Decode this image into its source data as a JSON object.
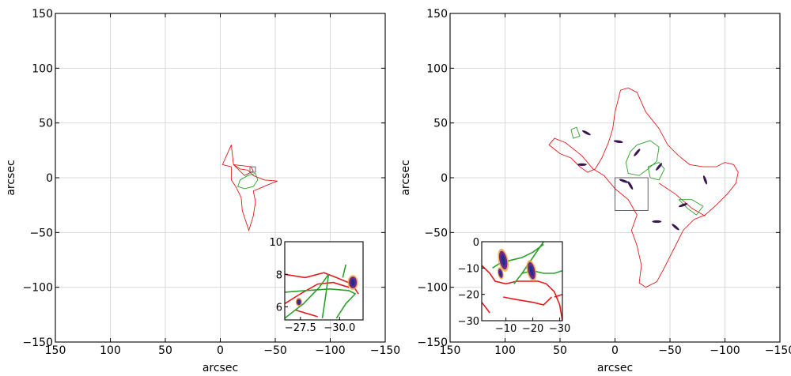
{
  "chart_data": [
    {
      "type": "line",
      "xlabel": "arcsec",
      "ylabel": "arcsec",
      "xlim": [
        150,
        -150
      ],
      "ylim": [
        -150,
        150
      ],
      "x_ticks": [
        "150",
        "100",
        "50",
        "0",
        "−50",
        "−100",
        "−150"
      ],
      "y_ticks": [
        "150",
        "100",
        "50",
        "0",
        "−50",
        "−100",
        "−150"
      ],
      "x_tick_values": [
        150,
        100,
        50,
        0,
        -50,
        -100,
        -150
      ],
      "y_tick_values": [
        150,
        100,
        50,
        0,
        -50,
        -100,
        -150
      ],
      "grid": true,
      "colors": {
        "red": "#e41a1c",
        "green": "#2ca02c"
      },
      "series": [
        {
          "color": "red",
          "points": [
            [
              -10,
              30
            ],
            [
              -12,
              12
            ],
            [
              -18,
              8
            ],
            [
              -25,
              7
            ],
            [
              -30,
              2
            ],
            [
              -40,
              -2
            ],
            [
              -52,
              -3
            ],
            [
              -42,
              -7
            ],
            [
              -35,
              -10
            ],
            [
              -30,
              -12
            ],
            [
              -32,
              -22
            ],
            [
              -30,
              -35
            ],
            [
              -26,
              -48
            ],
            [
              -20,
              -30
            ],
            [
              -19,
              -18
            ],
            [
              -14,
              -8
            ],
            [
              -10,
              -2
            ],
            [
              -10,
              10
            ],
            [
              -2,
              12
            ],
            [
              -10,
              30
            ]
          ]
        },
        {
          "color": "red",
          "points": [
            [
              -12,
              12
            ],
            [
              -28,
              10
            ],
            [
              -30,
              6
            ],
            [
              -22,
              2
            ],
            [
              -12,
              12
            ]
          ]
        },
        {
          "color": "green",
          "points": [
            [
              -18,
              -2
            ],
            [
              -25,
              2
            ],
            [
              -32,
              4
            ],
            [
              -34,
              -2
            ],
            [
              -30,
              -8
            ],
            [
              -22,
              -10
            ],
            [
              -16,
              -8
            ],
            [
              -18,
              -2
            ]
          ]
        }
      ],
      "box": {
        "x": [
          -27,
          -32
        ],
        "y": [
          5,
          10
        ]
      },
      "inset": {
        "xlim": [
          -26.5,
          -31.5
        ],
        "ylim": [
          5.2,
          10
        ],
        "x_ticks": [
          "−27.5",
          "−30.0"
        ],
        "x_tick_values": [
          -27.5,
          -30.0
        ],
        "y_ticks": [
          "6",
          "8",
          "10"
        ],
        "y_tick_values": [
          6,
          8,
          10
        ],
        "series": [
          {
            "color": "red",
            "points": [
              [
                -26.5,
                8.0
              ],
              [
                -27.8,
                7.8
              ],
              [
                -29.0,
                8.1
              ],
              [
                -29.8,
                7.8
              ],
              [
                -30.8,
                7.4
              ],
              [
                -31.2,
                6.8
              ]
            ]
          },
          {
            "color": "red",
            "points": [
              [
                -26.5,
                6.2
              ],
              [
                -27.5,
                6.8
              ],
              [
                -28.6,
                7.4
              ],
              [
                -29.6,
                7.5
              ],
              [
                -30.6,
                7.2
              ]
            ]
          },
          {
            "color": "red",
            "points": [
              [
                -27.2,
                5.8
              ],
              [
                -28.6,
                5.4
              ]
            ]
          },
          {
            "color": "green",
            "points": [
              [
                -26.5,
                5.3
              ],
              [
                -27.7,
                6.2
              ],
              [
                -28.7,
                7.2
              ],
              [
                -29.3,
                8.0
              ]
            ]
          },
          {
            "color": "green",
            "points": [
              [
                -26.5,
                6.9
              ],
              [
                -27.8,
                7.0
              ],
              [
                -29.4,
                7.1
              ],
              [
                -30.6,
                7.0
              ],
              [
                -31.0,
                6.8
              ],
              [
                -30.4,
                6.2
              ],
              [
                -29.8,
                5.3
              ]
            ]
          },
          {
            "color": "green",
            "points": [
              [
                -29.3,
                8.0
              ],
              [
                -29.1,
                6.6
              ],
              [
                -28.9,
                5.3
              ]
            ]
          },
          {
            "color": "green",
            "points": [
              [
                -30.4,
                8.6
              ],
              [
                -30.2,
                7.8
              ]
            ]
          }
        ],
        "blobs": [
          {
            "x": -30.85,
            "y": 7.5,
            "size": 0.22
          },
          {
            "x": -27.4,
            "y": 6.3,
            "size": 0.12
          }
        ]
      }
    },
    {
      "type": "line",
      "xlabel": "arcsec",
      "ylabel": "arcsec",
      "xlim": [
        150,
        -150
      ],
      "ylim": [
        -150,
        150
      ],
      "x_ticks": [
        "150",
        "100",
        "50",
        "0",
        "−50",
        "−100",
        "−150"
      ],
      "y_ticks": [
        "150",
        "100",
        "50",
        "0",
        "−50",
        "−100",
        "−150"
      ],
      "x_tick_values": [
        150,
        100,
        50,
        0,
        -50,
        -100,
        -150
      ],
      "y_tick_values": [
        150,
        100,
        50,
        0,
        -50,
        -100,
        -150
      ],
      "grid": true,
      "colors": {
        "red": "#e41a1c",
        "green": "#2ca02c"
      },
      "series": [
        {
          "color": "red",
          "points": [
            [
              0,
              60
            ],
            [
              -5,
              80
            ],
            [
              -12,
              82
            ],
            [
              -20,
              78
            ],
            [
              -28,
              60
            ],
            [
              -40,
              45
            ],
            [
              -48,
              30
            ],
            [
              -58,
              20
            ],
            [
              -68,
              12
            ],
            [
              -80,
              10
            ],
            [
              -92,
              10
            ],
            [
              -100,
              14
            ],
            [
              -108,
              12
            ],
            [
              -112,
              5
            ],
            [
              -110,
              -5
            ],
            [
              -102,
              -15
            ],
            [
              -92,
              -25
            ],
            [
              -82,
              -34
            ],
            [
              -72,
              -38
            ],
            [
              -62,
              -48
            ],
            [
              -55,
              -62
            ],
            [
              -50,
              -72
            ],
            [
              -45,
              -82
            ],
            [
              -38,
              -95
            ],
            [
              -28,
              -100
            ],
            [
              -22,
              -96
            ],
            [
              -24,
              -80
            ],
            [
              -20,
              -62
            ],
            [
              -15,
              -48
            ],
            [
              -20,
              -34
            ],
            [
              -12,
              -20
            ],
            [
              0,
              -10
            ],
            [
              10,
              2
            ],
            [
              20,
              8
            ],
            [
              30,
              20
            ],
            [
              45,
              32
            ],
            [
              55,
              36
            ],
            [
              60,
              30
            ],
            [
              50,
              22
            ],
            [
              40,
              18
            ],
            [
              32,
              10
            ],
            [
              25,
              5
            ],
            [
              18,
              8
            ],
            [
              12,
              18
            ],
            [
              6,
              32
            ],
            [
              2,
              45
            ],
            [
              0,
              60
            ]
          ]
        },
        {
          "color": "red",
          "points": [
            [
              -40,
              -5
            ],
            [
              -55,
              -15
            ],
            [
              -70,
              -28
            ],
            [
              -82,
              -35
            ]
          ]
        },
        {
          "color": "green",
          "points": [
            [
              -20,
              30
            ],
            [
              -32,
              34
            ],
            [
              -40,
              28
            ],
            [
              -38,
              15
            ],
            [
              -30,
              8
            ],
            [
              -22,
              2
            ],
            [
              -12,
              4
            ],
            [
              -10,
              14
            ],
            [
              -14,
              24
            ],
            [
              -20,
              30
            ]
          ]
        },
        {
          "color": "green",
          "points": [
            [
              -30,
              10
            ],
            [
              -40,
              14
            ],
            [
              -45,
              8
            ],
            [
              -40,
              -2
            ],
            [
              -32,
              0
            ],
            [
              -30,
              10
            ]
          ]
        },
        {
          "color": "green",
          "points": [
            [
              40,
              44
            ],
            [
              35,
              46
            ],
            [
              32,
              38
            ],
            [
              38,
              36
            ],
            [
              40,
              44
            ]
          ]
        },
        {
          "color": "green",
          "points": [
            [
              -58,
              -20
            ],
            [
              -66,
              -28
            ],
            [
              -74,
              -34
            ],
            [
              -80,
              -26
            ],
            [
              -70,
              -20
            ],
            [
              -58,
              -20
            ]
          ]
        }
      ],
      "box": {
        "x": [
          0,
          -30
        ],
        "y": [
          0,
          -30
        ]
      },
      "inset": {
        "xlim": [
          -1,
          -31
        ],
        "ylim": [
          -30,
          0
        ],
        "x_ticks": [
          "−10",
          "−20",
          "−30"
        ],
        "x_tick_values": [
          -10,
          -20,
          -30
        ],
        "y_ticks": [
          "0",
          "−10",
          "−20",
          "−30"
        ],
        "y_tick_values": [
          0,
          -10,
          -20,
          -30
        ],
        "series": [
          {
            "color": "red",
            "points": [
              [
                -1,
                -9
              ],
              [
                -4,
                -12
              ],
              [
                -6,
                -15
              ],
              [
                -10,
                -16
              ],
              [
                -14,
                -15
              ],
              [
                -18,
                -15
              ],
              [
                -22,
                -15
              ],
              [
                -25,
                -16
              ],
              [
                -28,
                -19
              ],
              [
                -30,
                -24
              ],
              [
                -31,
                -30
              ]
            ]
          },
          {
            "color": "red",
            "points": [
              [
                -9,
                -21
              ],
              [
                -14,
                -22
              ],
              [
                -20,
                -23
              ],
              [
                -24,
                -24
              ],
              [
                -27,
                -21
              ]
            ]
          },
          {
            "color": "red",
            "points": [
              [
                -1,
                -23
              ],
              [
                -4,
                -27
              ]
            ]
          },
          {
            "color": "red",
            "points": [
              [
                -28,
                -21
              ],
              [
                -31,
                -20
              ]
            ]
          },
          {
            "color": "green",
            "points": [
              [
                -5,
                -10
              ],
              [
                -8,
                -8
              ],
              [
                -12,
                -7
              ],
              [
                -16,
                -6
              ],
              [
                -20,
                -4
              ],
              [
                -24,
                -1
              ]
            ]
          },
          {
            "color": "green",
            "points": [
              [
                -13,
                -16
              ],
              [
                -16,
                -12
              ],
              [
                -20,
                -6
              ],
              [
                -24,
                0
              ]
            ]
          },
          {
            "color": "green",
            "points": [
              [
                -16,
                -12
              ],
              [
                -20,
                -11
              ],
              [
                -24,
                -12
              ],
              [
                -28,
                -12
              ],
              [
                -31,
                -11
              ]
            ]
          }
        ],
        "blobs": [
          {
            "x": -9,
            "y": -7,
            "size": 1.2
          },
          {
            "x": -19.5,
            "y": -11,
            "size": 1.1
          },
          {
            "x": -8,
            "y": -12,
            "size": 0.6
          }
        ]
      }
    }
  ]
}
